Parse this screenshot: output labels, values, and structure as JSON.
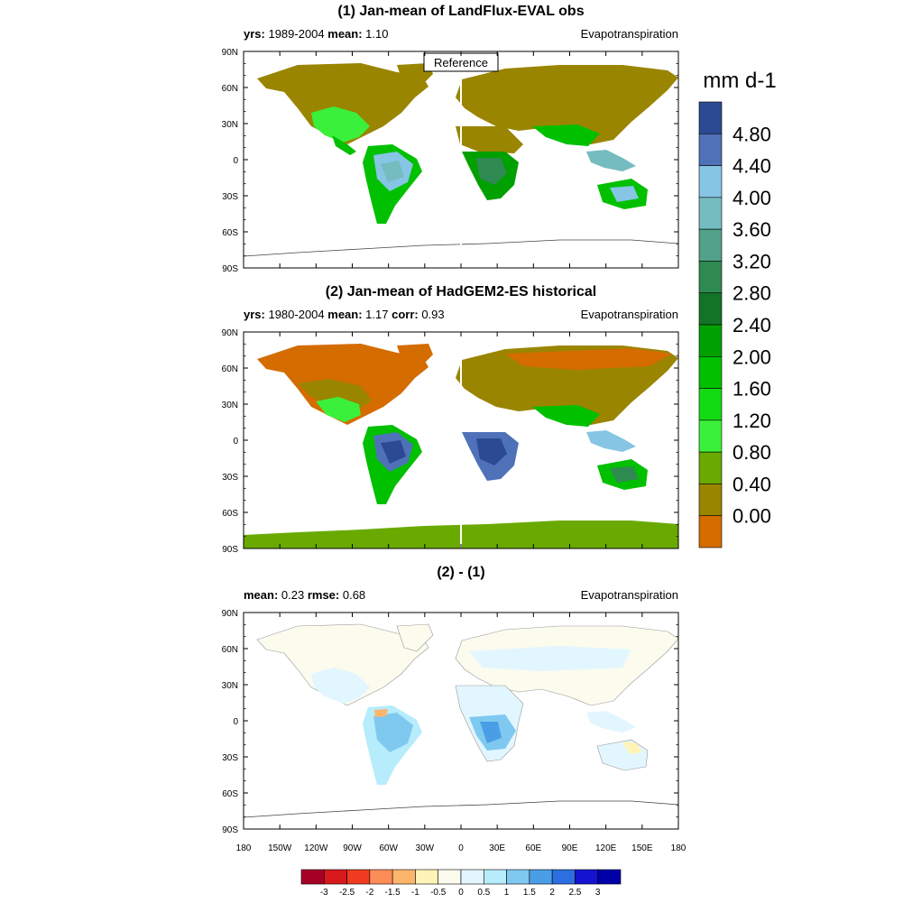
{
  "chart_data": [
    {
      "type": "heatmap",
      "title": "(1) Jan-mean of LandFlux-EVAL obs",
      "subtitle_left": {
        "k1": "yrs:",
        "v1": " 1989-2004 ",
        "k2": "mean:",
        "v2": " 1.10",
        "k3": "",
        "v3": ""
      },
      "subtitle_right": "Evapotranspiration",
      "badge": "Reference",
      "lat_ticks": [
        "90N",
        "60N",
        "30N",
        "0",
        "30S",
        "60S",
        "90S"
      ],
      "lon_ticks": [],
      "mean": 1.1,
      "regions": [
        {
          "name": "northern-landmass",
          "level": 0.2
        },
        {
          "name": "north-america-east",
          "level": 0.6
        },
        {
          "name": "central-america",
          "level": 1.0
        },
        {
          "name": "amazon",
          "level": 3.8
        },
        {
          "name": "south-america-south",
          "level": 1.4
        },
        {
          "name": "central-africa",
          "level": 3.0
        },
        {
          "name": "southern-africa",
          "level": 1.2
        },
        {
          "name": "south-asia",
          "level": 1.0
        },
        {
          "name": "maritime-continent",
          "level": 3.6
        },
        {
          "name": "australia-north",
          "level": 2.6
        },
        {
          "name": "australia-south",
          "level": 1.0
        }
      ]
    },
    {
      "type": "heatmap",
      "title": "(2) Jan-mean of HadGEM2-ES historical",
      "subtitle_left": {
        "k1": "yrs:",
        "v1": " 1980-2004 ",
        "k2": "mean:",
        "v2": " 1.17 ",
        "k3": "corr:",
        "v3": " 0.93"
      },
      "subtitle_right": "Evapotranspiration",
      "badge": "",
      "lat_ticks": [
        "90N",
        "60N",
        "30N",
        "0",
        "30S",
        "60S",
        "90S"
      ],
      "lon_ticks": [],
      "mean": 1.17,
      "corr": 0.93,
      "regions": [
        {
          "name": "northern-landmass",
          "level": -0.2
        },
        {
          "name": "north-america-east",
          "level": 0.6
        },
        {
          "name": "amazon",
          "level": 4.8
        },
        {
          "name": "south-america-south",
          "level": 1.6
        },
        {
          "name": "central-africa",
          "level": 4.2
        },
        {
          "name": "southern-africa",
          "level": 1.4
        },
        {
          "name": "maritime-continent",
          "level": 4.4
        },
        {
          "name": "australia-north",
          "level": 2.2
        },
        {
          "name": "antarctica",
          "level": 0.6
        }
      ]
    },
    {
      "type": "heatmap",
      "title": "(2) - (1)",
      "subtitle_left": {
        "k1": "mean:",
        "v1": " 0.23 ",
        "k2": "rmse:",
        "v2": " 0.68",
        "k3": "",
        "v3": ""
      },
      "subtitle_right": "Evapotranspiration",
      "badge": "",
      "lat_ticks": [
        "90N",
        "60N",
        "30N",
        "0",
        "30S",
        "60S",
        "90S"
      ],
      "lon_ticks": [
        "180",
        "150W",
        "120W",
        "90W",
        "60W",
        "30W",
        "0",
        "30E",
        "60E",
        "90E",
        "120E",
        "150E",
        "180"
      ],
      "mean": 0.23,
      "rmse": 0.68,
      "regions": [
        {
          "name": "northern-landmass",
          "level": -0.2
        },
        {
          "name": "amazon",
          "level": 1.0
        },
        {
          "name": "central-africa",
          "level": 1.5
        },
        {
          "name": "australia-north",
          "level": -0.3
        }
      ]
    }
  ],
  "colorbar": {
    "unit": "mm d-1",
    "labels": [
      "4.80",
      "4.40",
      "4.00",
      "3.60",
      "3.20",
      "2.80",
      "2.40",
      "2.00",
      "1.60",
      "1.20",
      "0.80",
      "0.40",
      "0.00"
    ],
    "colors": [
      "#2c4a94",
      "#4e71b8",
      "#86c5e4",
      "#74bcc0",
      "#52a28a",
      "#2f8a52",
      "#137428",
      "#00a000",
      "#00c000",
      "#13db13",
      "#3bf03b",
      "#6aaa00",
      "#9a8500",
      "#d46c00"
    ]
  },
  "diff_colorbar": {
    "labels": [
      "-3",
      "-2.5",
      "-2",
      "-1.5",
      "-1",
      "-0.5",
      "0",
      "0.5",
      "1",
      "1.5",
      "2",
      "2.5",
      "3"
    ],
    "colors": [
      "#a50026",
      "#d7191c",
      "#f03b20",
      "#fc8d59",
      "#fdb56b",
      "#fff3b8",
      "#fbfbee",
      "#e2f6ff",
      "#b6ecfc",
      "#7fc8f0",
      "#4a9ee6",
      "#2d6fe0",
      "#1414d0",
      "#0000a8"
    ]
  }
}
